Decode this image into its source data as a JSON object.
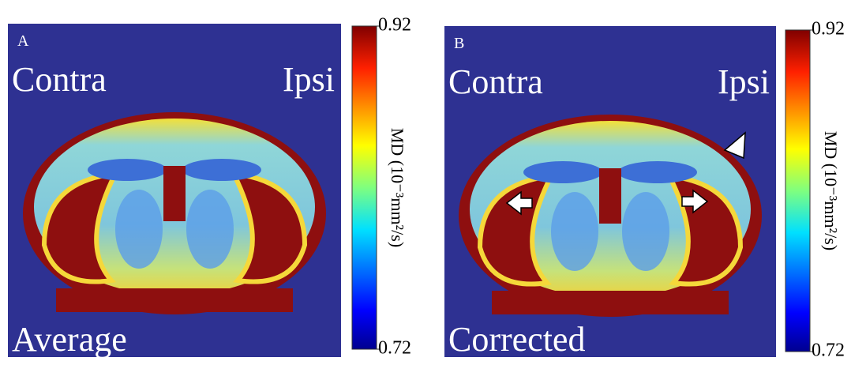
{
  "panels": [
    {
      "letter": "A",
      "left_label": "Contra",
      "right_label": "Ipsi",
      "caption": "Average",
      "colorbar": {
        "label": "MD (10⁻³mm²/s)",
        "lim": [
          0.72,
          0.92
        ],
        "ticks": [
          0.72,
          0.92
        ]
      }
    },
    {
      "letter": "B",
      "left_label": "Contra",
      "right_label": "Ipsi",
      "caption": "Corrected",
      "colorbar": {
        "label": "MD (10⁻³mm²/s)",
        "lim": [
          0.72,
          0.92
        ],
        "ticks": [
          0.72,
          0.92
        ]
      }
    }
  ]
}
